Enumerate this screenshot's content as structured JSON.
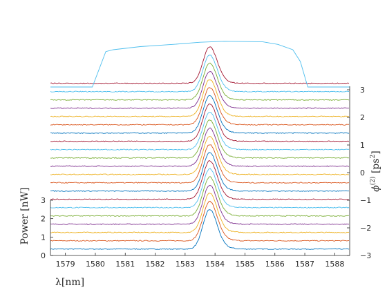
{
  "chart_data": {
    "type": "line",
    "xlabel": "λ[nm]",
    "ylabel_left": "Power [nW]",
    "ylabel_right": "ϕ(2) [ps2]",
    "xlim": [
      1578.5,
      1588.5
    ],
    "x_ticks": [
      1579,
      1580,
      1581,
      1582,
      1583,
      1584,
      1585,
      1586,
      1587,
      1588
    ],
    "y_left_ticks": [
      0,
      1,
      2,
      3
    ],
    "y_left_lim": [
      0,
      3
    ],
    "y_right_ticks": [
      -3,
      -2,
      -1,
      0,
      1,
      2,
      3
    ],
    "y_right_lim": [
      -3,
      3
    ],
    "grid": false,
    "waterfall": {
      "trace_count": 21,
      "dispersion_start": -3,
      "dispersion_end": 3,
      "baseline_power_nw": 0.35,
      "peak_center_nm": 1583.82,
      "peak_width_nm": 0.22,
      "peak_height_nw": 2.15
    },
    "spectrum_envelope": {
      "x": [
        1578.5,
        1579.9,
        1580.35,
        1580.6,
        1581.5,
        1582.5,
        1583.5,
        1584.3,
        1585.0,
        1585.6,
        1586.1,
        1586.6,
        1586.85,
        1587.1,
        1588.5
      ],
      "rel_height": [
        0.0,
        0.0,
        0.78,
        0.82,
        0.88,
        0.93,
        0.98,
        1.0,
        1.0,
        0.99,
        0.94,
        0.82,
        0.55,
        0.0,
        0.0
      ]
    },
    "colors": [
      "#0072bd",
      "#d95319",
      "#edb120",
      "#7e2f8e",
      "#77ac30",
      "#4dbeee",
      "#a2142f"
    ],
    "envelope_color": "#4dbeee"
  }
}
